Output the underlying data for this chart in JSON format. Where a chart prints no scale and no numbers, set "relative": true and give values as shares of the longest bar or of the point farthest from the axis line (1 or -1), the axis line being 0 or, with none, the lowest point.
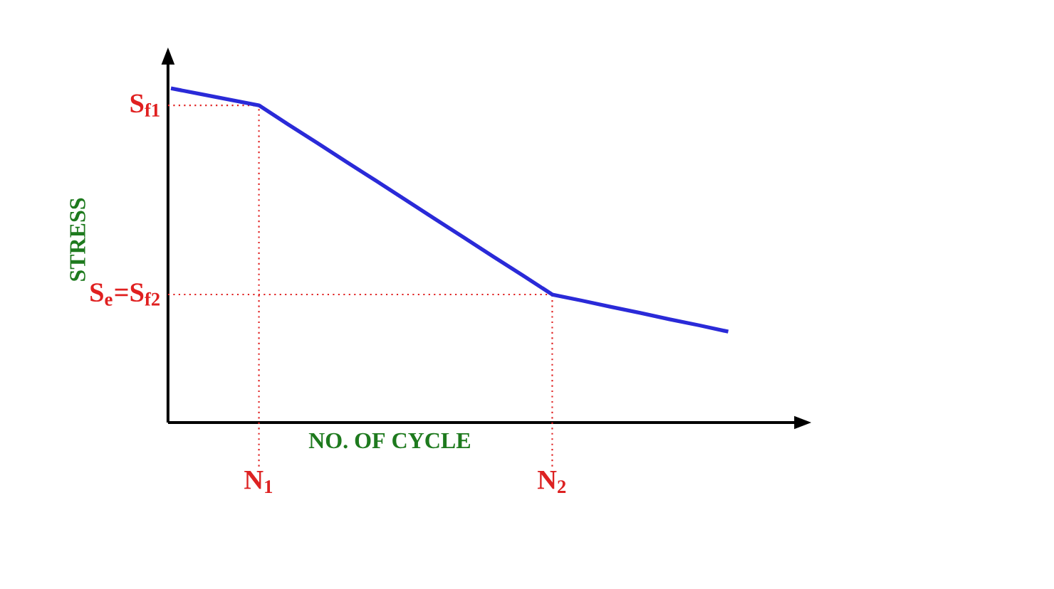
{
  "chart_data": {
    "type": "line",
    "xlabel": "NO. OF CYCLE",
    "ylabel": "STRESS",
    "relative": true,
    "categories": [
      null,
      null,
      null,
      "N$_{1}$",
      null,
      null,
      null,
      null,
      null,
      null,
      null,
      null,
      null,
      "N$_{2}$",
      null,
      null,
      null,
      null,
      null,
      null
    ],
    "series": [
      {
        "color": "#2a2ad8",
        "values": [
          1,
          0.983,
          0.966,
          0.949,
          0.892,
          0.836,
          0.779,
          0.723,
          0.666,
          0.609,
          0.553,
          0.496,
          0.44,
          0.383,
          0.365,
          0.346,
          0.328,
          0.309,
          0.291,
          0.272
        ]
      }
    ],
    "ref_lines": [
      {
        "axis": "x",
        "value": "N$_{1}$",
        "color": "#e02020",
        "line_style": "dotted"
      },
      {
        "axis": "x",
        "value": "N$_{2}$",
        "color": "#e02020",
        "line_style": "dotted"
      },
      {
        "axis": "y",
        "value": 0.949,
        "label": "S$_{f1}$",
        "color": "#e02020",
        "line_style": "dotted"
      },
      {
        "axis": "y",
        "value": 0.383,
        "label": "S$_{e}$=S$_{f2}$",
        "color": "#e02020",
        "line_style": "dotted"
      }
    ],
    "marker": "none",
    "line_style": "solid"
  }
}
